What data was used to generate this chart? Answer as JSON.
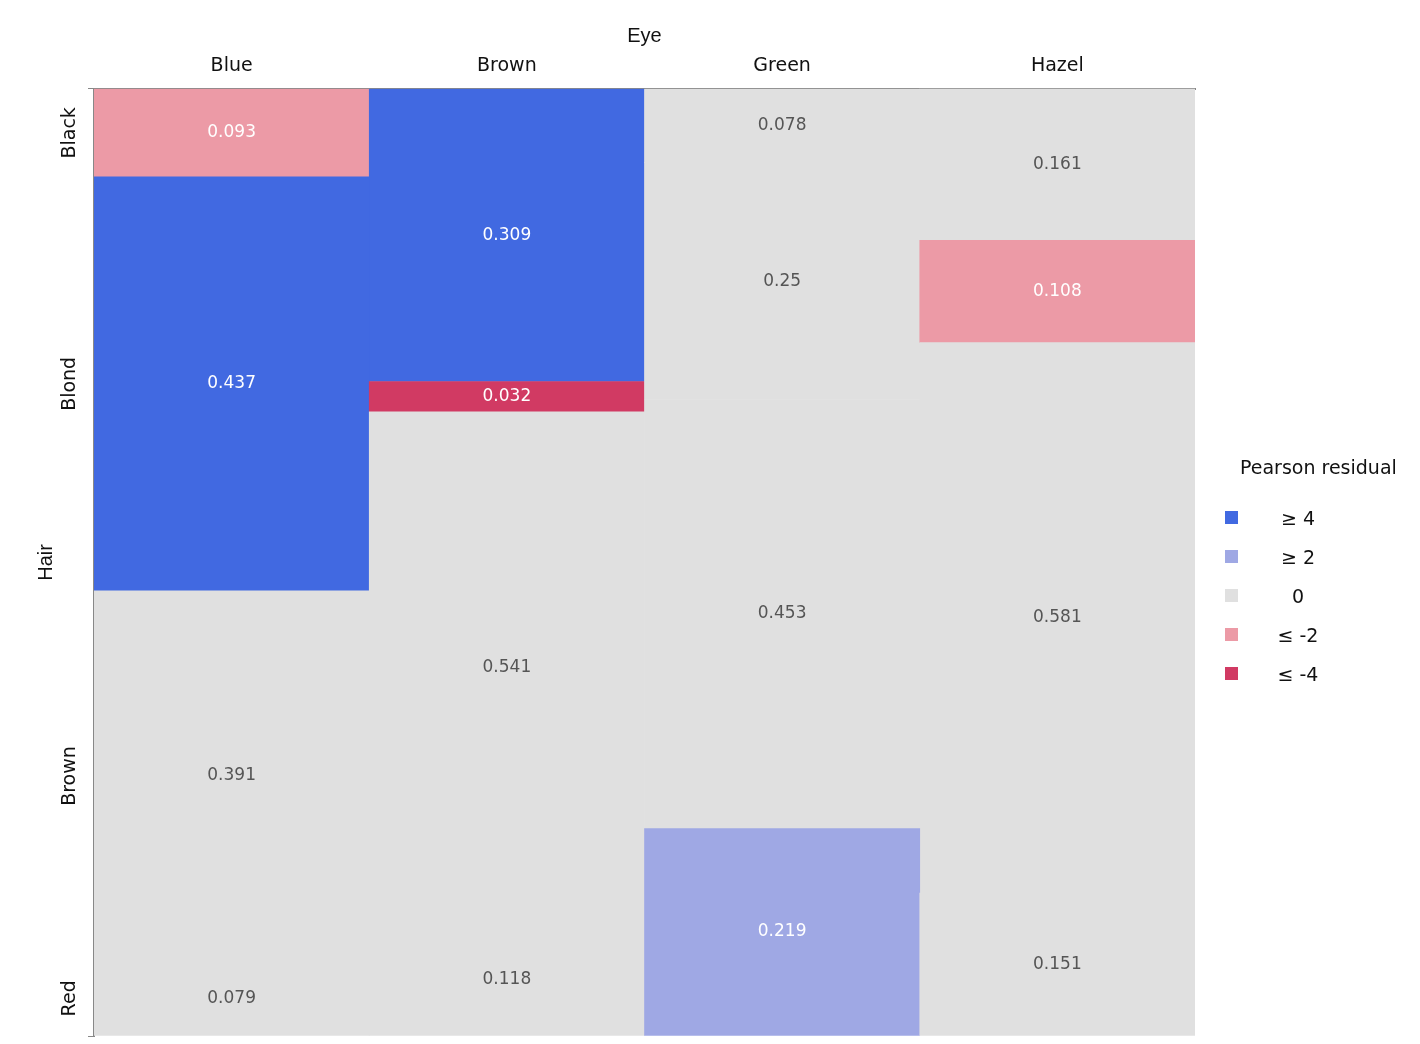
{
  "chart_data": {
    "type": "bar",
    "stacked": true,
    "xlabel": "Eye",
    "ylabel": "Hair",
    "legend_title": "Pearson residual",
    "annotations": [
      "≥ 4",
      "≥ 2",
      "0",
      "≤ -2",
      "≤ -4"
    ],
    "data_labels": true,
    "tick_labels": "x",
    "ylim": [
      0,
      1
    ],
    "yticks": [
      0,
      1
    ],
    "categories": [
      "Blue",
      "Brown",
      "Green",
      "Hazel"
    ],
    "series": [
      {
        "name": "Red",
        "values": [
          0.079,
          0.118,
          0.219,
          0.151
        ],
        "colors": [
          "#e0e0e0",
          "#e0e0e0",
          "#9fa8e4",
          "#e0e0e0"
        ]
      },
      {
        "name": "Brown",
        "values": [
          0.391,
          0.541,
          0.453,
          0.581
        ],
        "colors": [
          "#e0e0e0",
          "#e0e0e0",
          "#e0e0e0",
          "#e0e0e0"
        ]
      },
      {
        "name": "Blond",
        "values": [
          0.437,
          0.032,
          0.25,
          0.108
        ],
        "colors": [
          "#4169e1",
          "#d13a63",
          "#e0e0e0",
          "#ec9aa6"
        ]
      },
      {
        "name": "Black",
        "values": [
          0.093,
          0.309,
          0.078,
          0.161
        ],
        "colors": [
          "#ec9aa6",
          "#4169e1",
          "#e0e0e0",
          "#e0e0e0"
        ]
      }
    ]
  }
}
